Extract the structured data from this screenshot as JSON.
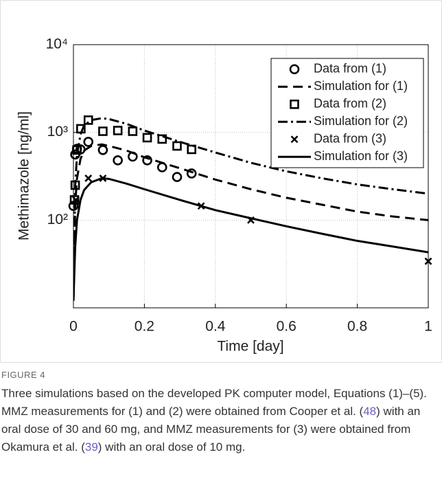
{
  "chart_data": {
    "type": "line",
    "xlabel": "Time [day]",
    "ylabel": "Methimazole [ng/ml]",
    "xlim": [
      0,
      1
    ],
    "xticks": [
      0,
      0.2,
      0.4,
      0.6,
      0.8,
      1
    ],
    "ylim": [
      10,
      10000
    ],
    "yscale": "log",
    "yticks": [
      {
        "value": 100,
        "label": "10²"
      },
      {
        "value": 1000,
        "label": "10³"
      },
      {
        "value": 10000,
        "label": "10⁴"
      }
    ],
    "grid": true,
    "legend": "upper right",
    "series": [
      {
        "name": "Data from (1)",
        "color": "#000000",
        "marker": "circle",
        "linestyle": "none",
        "x": [
          0,
          0.005,
          0.01,
          0.02,
          0.042,
          0.083,
          0.125,
          0.167,
          0.208,
          0.25,
          0.292,
          0.333
        ],
        "values": [
          145,
          560,
          650,
          640,
          780,
          630,
          480,
          530,
          480,
          400,
          310,
          340
        ]
      },
      {
        "name": "Simulation for (1)",
        "color": "#000000",
        "marker": "none",
        "linestyle": "dashed",
        "x": [
          0,
          0.005,
          0.01,
          0.02,
          0.03,
          0.05,
          0.08,
          0.1,
          0.15,
          0.2,
          0.3,
          0.4,
          0.5,
          0.6,
          0.7,
          0.8,
          0.9,
          1
        ],
        "values": [
          12,
          150,
          300,
          500,
          620,
          700,
          730,
          700,
          620,
          520,
          390,
          290,
          225,
          180,
          150,
          125,
          110,
          100
        ]
      },
      {
        "name": "Data from (2)",
        "color": "#000000",
        "marker": "square",
        "linestyle": "none",
        "x": [
          0.003,
          0.005,
          0.01,
          0.021,
          0.042,
          0.083,
          0.125,
          0.167,
          0.208,
          0.25,
          0.292,
          0.333
        ],
        "values": [
          170,
          250,
          630,
          1100,
          1380,
          1030,
          1050,
          1030,
          870,
          840,
          700,
          640
        ]
      },
      {
        "name": "Simulation for (2)",
        "color": "#000000",
        "marker": "none",
        "linestyle": "dashdot",
        "x": [
          0,
          0.005,
          0.01,
          0.02,
          0.03,
          0.05,
          0.08,
          0.1,
          0.15,
          0.2,
          0.3,
          0.4,
          0.5,
          0.6,
          0.7,
          0.8,
          0.9,
          1
        ],
        "values": [
          12,
          250,
          550,
          950,
          1200,
          1380,
          1450,
          1420,
          1250,
          1050,
          780,
          590,
          450,
          360,
          300,
          255,
          225,
          200
        ]
      },
      {
        "name": "Data from (3)",
        "color": "#000000",
        "marker": "x",
        "linestyle": "none",
        "x": [
          0.007,
          0.042,
          0.083,
          0.36,
          0.5,
          1
        ],
        "values": [
          170,
          300,
          300,
          145,
          100,
          34
        ]
      },
      {
        "name": "Simulation for (3)",
        "color": "#000000",
        "marker": "none",
        "linestyle": "solid",
        "x": [
          0,
          0.005,
          0.01,
          0.02,
          0.03,
          0.05,
          0.08,
          0.1,
          0.15,
          0.2,
          0.3,
          0.4,
          0.5,
          0.6,
          0.7,
          0.8,
          0.9,
          1
        ],
        "values": [
          12,
          50,
          100,
          170,
          220,
          270,
          300,
          295,
          260,
          225,
          170,
          130,
          105,
          85,
          70,
          58,
          50,
          43
        ]
      }
    ]
  },
  "caption": {
    "label": "FIGURE 4",
    "parts": [
      "Three simulations based on the developed PK computer model, Equations (1)–(5). MMZ measurements for (1) and (2) were obtained from Cooper et al. (",
      "48",
      ") with an oral dose of 30 and 60 mg, and MMZ measurements for (3) were obtained from Okamura et al. (",
      "39",
      ") with an oral dose of 10 mg."
    ]
  }
}
